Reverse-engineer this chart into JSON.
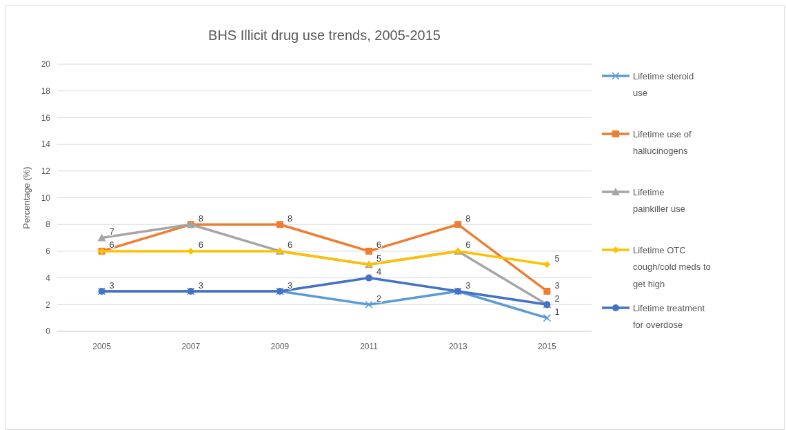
{
  "chart_data": {
    "type": "line",
    "title": "BHS Illicit drug use trends, 2005-2015",
    "ylabel": "Percentage (%)",
    "categories": [
      "2005",
      "2007",
      "2009",
      "2011",
      "2013",
      "2015"
    ],
    "series": [
      {
        "name": "Lifetime steroid use",
        "color": "#5b9bd5",
        "marker": "cross",
        "values": [
          3,
          3,
          3,
          2,
          3,
          1
        ],
        "value_labels": [
          "3",
          "3",
          "3",
          "2",
          "3",
          "1"
        ]
      },
      {
        "name": "Lifetime use of hallucinogens",
        "color": "#ed7d31",
        "marker": "square",
        "values": [
          6,
          8,
          8,
          6,
          8,
          3
        ],
        "value_labels": [
          "6",
          "8",
          "8",
          "6",
          "8",
          "3"
        ]
      },
      {
        "name": "Lifetime painkiller use",
        "color": "#a5a5a5",
        "marker": "triangle",
        "values": [
          7,
          8,
          6,
          5,
          6,
          2
        ],
        "value_labels": [
          "7",
          null,
          "6",
          "5",
          "6",
          "2"
        ]
      },
      {
        "name": "Lifetime OTC cough/cold meds to get high",
        "color": "#ffc000",
        "marker": "diamond",
        "values": [
          6,
          6,
          6,
          5,
          6,
          5
        ],
        "value_labels": [
          null,
          "6",
          null,
          null,
          null,
          "5"
        ]
      },
      {
        "name": "Lifetime treatment for overdose",
        "color": "#4472c4",
        "marker": "circle",
        "values": [
          3,
          3,
          3,
          4,
          3,
          2
        ],
        "value_labels": [
          null,
          null,
          null,
          "4",
          null,
          null
        ]
      }
    ],
    "ylim": [
      0,
      20
    ],
    "yticks": [
      0,
      2,
      4,
      6,
      8,
      10,
      12,
      14,
      16,
      18,
      20
    ],
    "grid": "y",
    "legend": "right"
  }
}
